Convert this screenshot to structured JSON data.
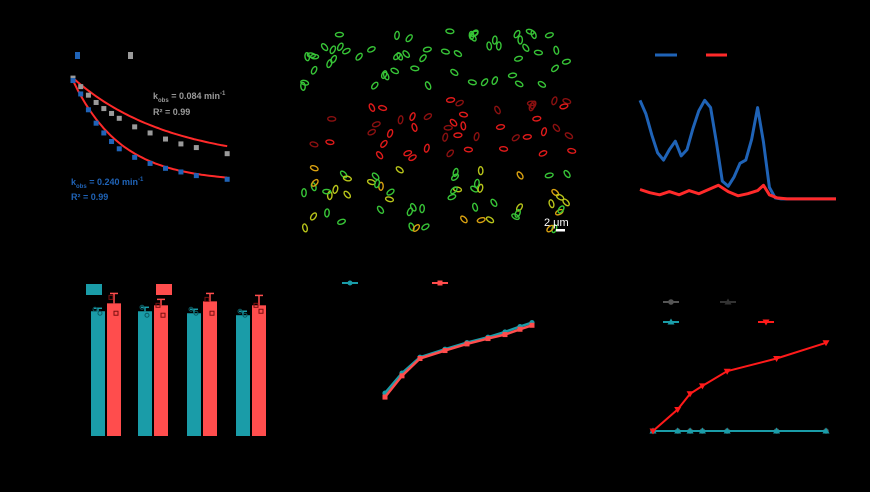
{
  "colors": {
    "gray": "#9a9a9a",
    "blue": "#1f63b7",
    "red": "#ff2a2a",
    "teal": "#1a9ca8",
    "salmon": "#ff4d4d",
    "green": "#38c638",
    "darkgray": "#555555"
  },
  "microscopy": {
    "scale_label": "2 μm"
  },
  "chart_data": [
    {
      "id": "decay",
      "type": "scatter",
      "title": "",
      "xlabel": "",
      "ylabel": "",
      "xlim": [
        0,
        12
      ],
      "ylim": [
        0,
        1.05
      ],
      "grid": false,
      "legend": "top-left",
      "series": [
        {
          "color": "#9a9a9a",
          "marker": "square",
          "x": [
            0,
            0.5,
            1,
            1.5,
            2,
            2.5,
            3,
            4,
            5,
            6,
            7,
            8,
            10
          ],
          "y": [
            1.0,
            0.93,
            0.86,
            0.8,
            0.75,
            0.71,
            0.67,
            0.6,
            0.55,
            0.5,
            0.46,
            0.43,
            0.38
          ],
          "fit_k": 0.16,
          "fit_floor": 0.3
        },
        {
          "color": "#1f63b7",
          "marker": "square",
          "x": [
            0,
            0.5,
            1,
            1.5,
            2,
            2.5,
            3,
            4,
            5,
            6,
            7,
            8,
            10
          ],
          "y": [
            0.98,
            0.87,
            0.74,
            0.63,
            0.55,
            0.48,
            0.42,
            0.35,
            0.3,
            0.26,
            0.23,
            0.2,
            0.17
          ],
          "fit_k": 0.32,
          "fit_floor": 0.15
        }
      ],
      "annotations": [
        {
          "lines": [
            "k",
            "obs",
            " = 0.084 min",
            "-1"
          ],
          "r2": "R² = 0.99",
          "color": "#9a9a9a"
        },
        {
          "lines": [
            "k",
            "obs",
            " = 0.240 min",
            "-1"
          ],
          "r2": "R² = 0.99",
          "color": "#1f63b7"
        }
      ]
    },
    {
      "id": "spectra",
      "type": "line",
      "title": "",
      "xlabel": "",
      "ylabel": "",
      "xlim": [
        0,
        1
      ],
      "ylim": [
        0,
        1
      ],
      "grid": false,
      "legend": "top-left",
      "series": [
        {
          "color": "#1f63b7",
          "x": [
            0,
            0.03,
            0.06,
            0.09,
            0.12,
            0.15,
            0.18,
            0.21,
            0.24,
            0.27,
            0.3,
            0.33,
            0.36,
            0.39,
            0.42,
            0.45,
            0.48,
            0.51,
            0.54,
            0.57,
            0.6,
            0.63,
            0.66,
            0.69,
            0.72,
            0.75,
            0.78,
            0.81,
            0.84,
            0.87,
            0.9,
            0.95,
            1.0
          ],
          "y": [
            0.95,
            0.82,
            0.62,
            0.45,
            0.38,
            0.48,
            0.56,
            0.42,
            0.48,
            0.68,
            0.85,
            0.95,
            0.88,
            0.55,
            0.18,
            0.13,
            0.22,
            0.35,
            0.38,
            0.58,
            0.88,
            0.55,
            0.12,
            0.02,
            0.01,
            0.01,
            0.01,
            0.01,
            0.01,
            0.01,
            0.01,
            0.01,
            0.01
          ]
        },
        {
          "color": "#ff2a2a",
          "x": [
            0,
            0.05,
            0.1,
            0.15,
            0.2,
            0.25,
            0.3,
            0.35,
            0.4,
            0.45,
            0.5,
            0.55,
            0.6,
            0.63,
            0.66,
            0.7,
            0.75,
            0.8,
            0.85,
            0.9,
            0.95,
            1.0
          ],
          "y": [
            0.1,
            0.07,
            0.05,
            0.08,
            0.05,
            0.09,
            0.06,
            0.1,
            0.14,
            0.08,
            0.04,
            0.06,
            0.09,
            0.14,
            0.05,
            0.02,
            0.01,
            0.01,
            0.01,
            0.01,
            0.01,
            0.01
          ]
        }
      ]
    },
    {
      "id": "bars",
      "type": "bar",
      "title": "",
      "xlabel": "",
      "ylabel": "",
      "ylim": [
        0,
        100
      ],
      "grid": false,
      "legend": "top-left",
      "categories": [
        "",
        "",
        "",
        ""
      ],
      "series": [
        {
          "color": "#1a9ca8",
          "values": [
            63,
            63,
            62,
            61
          ],
          "errors": [
            1.5,
            2,
            2,
            2
          ],
          "points": [
            [
              64,
              62
            ],
            [
              65,
              61
            ],
            [
              64,
              62
            ],
            [
              63,
              61
            ]
          ]
        },
        {
          "color": "#ff4d4d",
          "values": [
            67,
            66,
            68,
            66
          ],
          "errors": [
            5,
            3,
            4,
            5
          ],
          "points": [
            [
              70,
              62
            ],
            [
              66,
              61
            ],
            [
              69,
              62
            ],
            [
              66,
              63
            ]
          ]
        }
      ]
    },
    {
      "id": "growth",
      "type": "line",
      "title": "",
      "xlabel": "",
      "ylabel": "",
      "xlim": [
        0,
        10
      ],
      "ylim": [
        0,
        100
      ],
      "grid": false,
      "legend": "top",
      "series": [
        {
          "color": "#1a9ca8",
          "marker": "circle",
          "x": [
            0,
            1,
            2,
            3,
            4,
            5,
            6,
            7,
            8
          ],
          "y": [
            30,
            45,
            57,
            63,
            68,
            72,
            76,
            80,
            83
          ]
        },
        {
          "color": "#ff4d4d",
          "marker": "square",
          "x": [
            0,
            1,
            2,
            3,
            4,
            5,
            6,
            7,
            8
          ],
          "y": [
            27,
            43,
            56,
            62,
            67,
            71,
            74,
            78,
            81
          ]
        }
      ]
    },
    {
      "id": "release",
      "type": "line",
      "title": "",
      "xlabel": "",
      "ylabel": "",
      "xlim": [
        0,
        10
      ],
      "ylim": [
        0,
        100
      ],
      "grid": false,
      "legend": "top",
      "series": [
        {
          "color": "#555555",
          "marker": "circle",
          "x": [
            0,
            1,
            1.5,
            2,
            3,
            5,
            7
          ],
          "y": [
            0,
            0,
            0,
            0,
            0,
            0,
            0
          ]
        },
        {
          "color": "#333333",
          "marker": "triangle",
          "x": [
            0,
            1,
            1.5,
            2,
            3,
            5,
            7
          ],
          "y": [
            0,
            0,
            0,
            0,
            0,
            0,
            0
          ]
        },
        {
          "color": "#1a9ca8",
          "marker": "triangle",
          "x": [
            0,
            1,
            1.5,
            2,
            3,
            5,
            7
          ],
          "y": [
            0,
            0,
            0,
            0,
            0,
            0,
            0
          ]
        },
        {
          "color": "#ff1a1a",
          "marker": "triangle-down",
          "x": [
            0,
            1,
            1.5,
            2,
            3,
            5,
            7
          ],
          "y": [
            0,
            22,
            38,
            46,
            61,
            74,
            90
          ]
        }
      ]
    }
  ]
}
